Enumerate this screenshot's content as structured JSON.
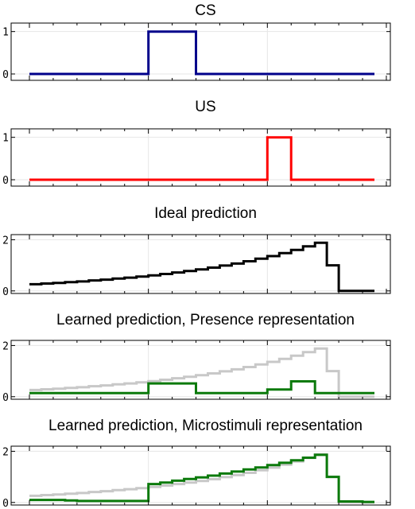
{
  "chart_data": [
    {
      "type": "line",
      "title": "CS",
      "x_range": [
        0,
        30
      ],
      "ylim": [
        -0.15,
        1.2
      ],
      "yticks": [
        0,
        1
      ],
      "ytick_labels": [
        "0",
        "1"
      ],
      "grid": true,
      "series": [
        {
          "color": "#00008b",
          "step": true,
          "points": [
            [
              0,
              0
            ],
            [
              10,
              0
            ],
            [
              10,
              1
            ],
            [
              14,
              1
            ],
            [
              14,
              0
            ],
            [
              29,
              0
            ]
          ]
        }
      ]
    },
    {
      "type": "line",
      "title": "US",
      "x_range": [
        0,
        30
      ],
      "ylim": [
        -0.15,
        1.2
      ],
      "yticks": [
        0,
        1
      ],
      "ytick_labels": [
        "0",
        "1"
      ],
      "grid": true,
      "series": [
        {
          "color": "#ff0000",
          "step": true,
          "points": [
            [
              0,
              0
            ],
            [
              20,
              0
            ],
            [
              20,
              1
            ],
            [
              22,
              1
            ],
            [
              22,
              0
            ],
            [
              29,
              0
            ]
          ]
        }
      ]
    },
    {
      "type": "line",
      "title": "Ideal prediction",
      "x_range": [
        0,
        30
      ],
      "ylim": [
        -0.1,
        2.2
      ],
      "yticks": [
        0,
        2
      ],
      "ytick_labels": [
        "0",
        "2"
      ],
      "grid": true,
      "series": [
        {
          "color": "#000000",
          "step": true,
          "values": [
            0.26,
            0.29,
            0.31,
            0.34,
            0.37,
            0.41,
            0.44,
            0.48,
            0.52,
            0.56,
            0.61,
            0.66,
            0.72,
            0.78,
            0.84,
            0.91,
            0.99,
            1.07,
            1.16,
            1.26,
            1.36,
            1.48,
            1.6,
            1.74,
            1.88,
            1.0,
            0.0,
            0.0,
            0.0,
            0.0
          ]
        }
      ]
    },
    {
      "type": "line",
      "title": "Learned prediction, Presence representation",
      "x_range": [
        0,
        30
      ],
      "ylim": [
        -0.1,
        2.2
      ],
      "yticks": [
        0,
        2
      ],
      "ytick_labels": [
        "0",
        "2"
      ],
      "grid": true,
      "series": [
        {
          "color": "#c8c8c8",
          "step": true,
          "values": [
            0.26,
            0.29,
            0.31,
            0.34,
            0.37,
            0.41,
            0.44,
            0.48,
            0.52,
            0.56,
            0.61,
            0.66,
            0.72,
            0.78,
            0.84,
            0.91,
            0.99,
            1.07,
            1.16,
            1.26,
            1.36,
            1.48,
            1.6,
            1.74,
            1.88,
            1.0,
            0.0,
            0.0,
            0.0,
            0.0
          ]
        },
        {
          "color": "#0b7a0b",
          "step": true,
          "points": [
            [
              0,
              0.14
            ],
            [
              10,
              0.14
            ],
            [
              10,
              0.52
            ],
            [
              14,
              0.52
            ],
            [
              14,
              0.14
            ],
            [
              20,
              0.14
            ],
            [
              20,
              0.28
            ],
            [
              22,
              0.28
            ],
            [
              22,
              0.6
            ],
            [
              24,
              0.6
            ],
            [
              24,
              0.14
            ],
            [
              29,
              0.14
            ]
          ]
        }
      ]
    },
    {
      "type": "line",
      "title": "Learned prediction, Microstimuli representation",
      "x_range": [
        0,
        30
      ],
      "ylim": [
        -0.1,
        2.2
      ],
      "yticks": [
        0,
        2
      ],
      "ytick_labels": [
        "0",
        "2"
      ],
      "grid": true,
      "series": [
        {
          "color": "#c8c8c8",
          "step": true,
          "values": [
            0.26,
            0.29,
            0.31,
            0.34,
            0.37,
            0.41,
            0.44,
            0.48,
            0.52,
            0.56,
            0.61,
            0.66,
            0.72,
            0.78,
            0.84,
            0.91,
            0.99,
            1.07,
            1.16,
            1.26,
            1.36,
            1.48,
            1.6,
            1.74,
            1.88,
            1.0,
            0.0,
            0.0,
            0.0,
            0.0
          ]
        },
        {
          "color": "#0b7a0b",
          "step": true,
          "values": [
            0.1,
            0.1,
            0.1,
            0.08,
            0.06,
            0.06,
            0.06,
            0.06,
            0.06,
            0.06,
            0.72,
            0.78,
            0.85,
            0.92,
            0.98,
            1.05,
            1.13,
            1.21,
            1.29,
            1.37,
            1.46,
            1.55,
            1.65,
            1.75,
            1.86,
            1.0,
            0.04,
            0.04,
            0.02,
            0.02
          ]
        }
      ]
    }
  ]
}
